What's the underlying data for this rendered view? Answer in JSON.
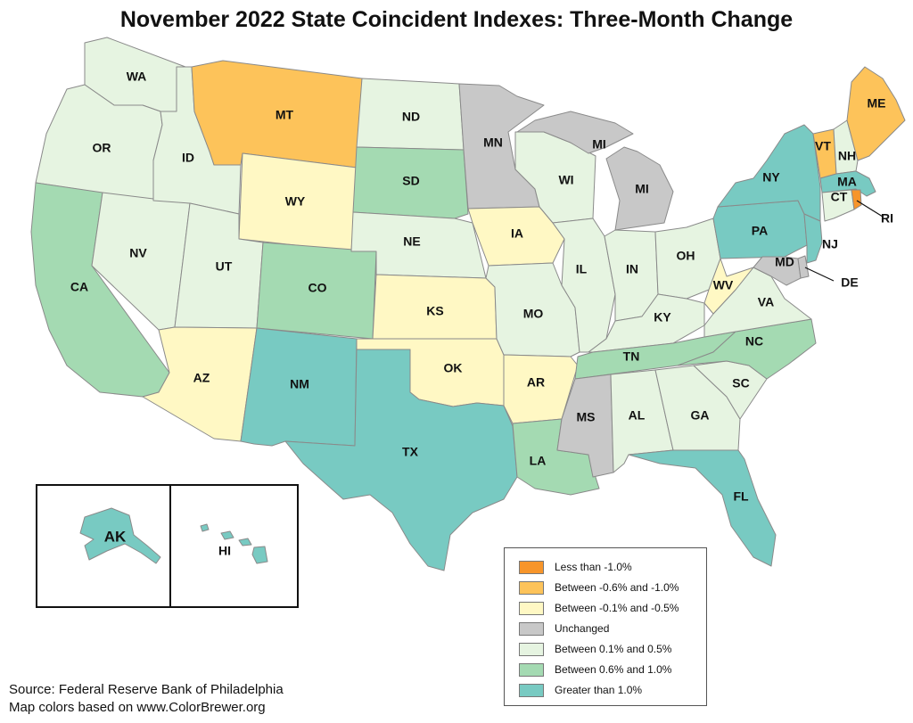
{
  "title": "November 2022 State Coincident Indexes: Three-Month Change",
  "legend": [
    {
      "label": "Less than -1.0%",
      "color": "#f7952a"
    },
    {
      "label": "Between -0.6% and -1.0%",
      "color": "#fdc35a"
    },
    {
      "label": "Between -0.1% and -0.5%",
      "color": "#fff8c4"
    },
    {
      "label": "Unchanged",
      "color": "#c8c8c8"
    },
    {
      "label": "Between 0.1% and 0.5%",
      "color": "#e6f4e1"
    },
    {
      "label": "Between 0.6% and 1.0%",
      "color": "#a4dab2"
    },
    {
      "label": "Greater than 1.0%",
      "color": "#78cac2"
    }
  ],
  "source": {
    "line1": "Source: Federal Reserve Bank of Philadelphia",
    "line2": "Map colors based on www.ColorBrewer.org"
  },
  "states": [
    {
      "code": "WA",
      "category": 4
    },
    {
      "code": "OR",
      "category": 4
    },
    {
      "code": "CA",
      "category": 5
    },
    {
      "code": "NV",
      "category": 4
    },
    {
      "code": "ID",
      "category": 4
    },
    {
      "code": "MT",
      "category": 1
    },
    {
      "code": "WY",
      "category": 2
    },
    {
      "code": "UT",
      "category": 4
    },
    {
      "code": "AZ",
      "category": 2
    },
    {
      "code": "CO",
      "category": 5
    },
    {
      "code": "NM",
      "category": 6
    },
    {
      "code": "ND",
      "category": 4
    },
    {
      "code": "SD",
      "category": 5
    },
    {
      "code": "NE",
      "category": 4
    },
    {
      "code": "KS",
      "category": 2
    },
    {
      "code": "OK",
      "category": 2
    },
    {
      "code": "TX",
      "category": 6
    },
    {
      "code": "MN",
      "category": 3
    },
    {
      "code": "IA",
      "category": 2
    },
    {
      "code": "MO",
      "category": 4
    },
    {
      "code": "AR",
      "category": 2
    },
    {
      "code": "LA",
      "category": 5
    },
    {
      "code": "WI",
      "category": 4
    },
    {
      "code": "IL",
      "category": 4
    },
    {
      "code": "MI",
      "category": 3
    },
    {
      "code": "IN",
      "category": 4
    },
    {
      "code": "OH",
      "category": 4
    },
    {
      "code": "KY",
      "category": 4
    },
    {
      "code": "TN",
      "category": 5
    },
    {
      "code": "MS",
      "category": 3
    },
    {
      "code": "AL",
      "category": 4
    },
    {
      "code": "GA",
      "category": 4
    },
    {
      "code": "FL",
      "category": 6
    },
    {
      "code": "SC",
      "category": 4
    },
    {
      "code": "NC",
      "category": 5
    },
    {
      "code": "VA",
      "category": 4
    },
    {
      "code": "WV",
      "category": 2
    },
    {
      "code": "PA",
      "category": 6
    },
    {
      "code": "NY",
      "category": 6
    },
    {
      "code": "NJ",
      "category": 6
    },
    {
      "code": "DE",
      "category": 3
    },
    {
      "code": "MD",
      "category": 3
    },
    {
      "code": "VT",
      "category": 1
    },
    {
      "code": "NH",
      "category": 4
    },
    {
      "code": "ME",
      "category": 1
    },
    {
      "code": "MA",
      "category": 6
    },
    {
      "code": "CT",
      "category": 4
    },
    {
      "code": "RI",
      "category": 0
    },
    {
      "code": "AK",
      "category": 6
    },
    {
      "code": "HI",
      "category": 6
    }
  ]
}
